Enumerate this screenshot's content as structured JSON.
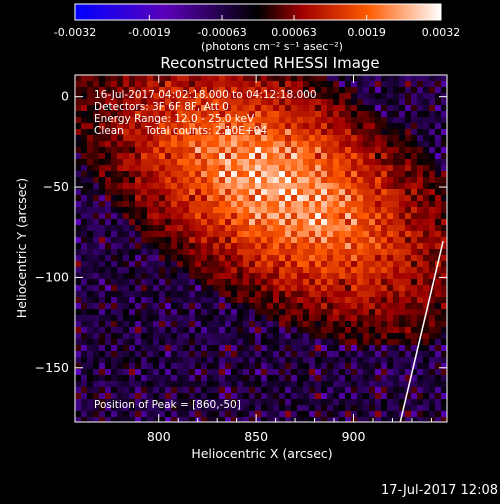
{
  "chart_data": {
    "type": "heatmap",
    "title": "Reconstructed RHESSI Image",
    "xlabel": "Heliocentric X (arcsec)",
    "ylabel": "Heliocentric Y (arcsec)",
    "xlim": [
      757,
      948
    ],
    "ylim": [
      -180,
      12
    ],
    "x_ticks": [
      "800",
      "850",
      "900"
    ],
    "x_tick_values": [
      800,
      850,
      900
    ],
    "y_ticks": [
      "0",
      "−50",
      "−100",
      "−150"
    ],
    "y_tick_values": [
      0,
      -50,
      -100,
      -150
    ],
    "colorbar": {
      "ticks": [
        "-0.0032",
        "-0.0019",
        "-0.00063",
        "0.00063",
        "0.0019",
        "0.0032"
      ],
      "tick_values": [
        -0.0032,
        -0.0019,
        -0.00063,
        0.00063,
        0.0019,
        0.0032
      ],
      "range": [
        -0.0032,
        0.0032
      ],
      "colors": [
        "#0000ff",
        "#6a00b0",
        "#000000",
        "#c80000",
        "#ff8c00",
        "#ffffff"
      ]
    },
    "units_label": "(photons cm⁻² s⁻¹ asec⁻²)",
    "annotations": {
      "time": "16-Jul-2017 04:02:18.000 to 04:12:18.000",
      "detectors": "Detectors: 3F 6F 8F, Att 0",
      "energy": "Energy Range: 12.0 - 25.0 keV",
      "clean": "Clean",
      "counts": "Total counts: 2.10E+04",
      "peak": "Position of Peak = [860,-50]"
    },
    "peak": {
      "x": 860,
      "y": -50
    },
    "limb_line": [
      [
        924,
        -180
      ],
      [
        946,
        -80
      ]
    ]
  },
  "timestamp": "17-Jul-2017 12:08"
}
